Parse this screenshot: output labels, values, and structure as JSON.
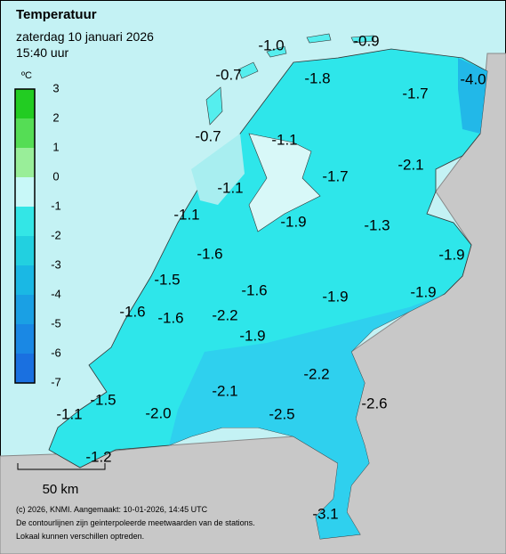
{
  "header": {
    "title": "Temperatuur",
    "date": "zaterdag 10 januari 2026",
    "time": "15:40 uur"
  },
  "legend": {
    "unit": "ºC",
    "ticks": [
      "3",
      "2",
      "1",
      "0",
      "-1",
      "-2",
      "-3",
      "-4",
      "-5",
      "-6",
      "-7"
    ]
  },
  "stations": [
    "-1.0",
    "-0.9",
    "-0.7",
    "-1.8",
    "-1.7",
    "-4.0",
    "-0.7",
    "-1.1",
    "-2.1",
    "-1.7",
    "-1.1",
    "-1.1",
    "-1.9",
    "-1.3",
    "-1.9",
    "-1.6",
    "-1.5",
    "-1.6",
    "-1.9",
    "-1.9",
    "-1.6",
    "-1.6",
    "-2.2",
    "-1.9",
    "-2.2",
    "-2.1",
    "-1.5",
    "-2.6",
    "-1.1",
    "-2.0",
    "-2.5",
    "-1.2",
    "-3.1"
  ],
  "scale_bar": "50 km",
  "footer": [
    "(c) 2026, KNMI. Aangemaakt: 10-01-2026, 14:45 UTC",
    "De contourlijnen zijn geinterpoleerde meetwaarden van de stations.",
    "Lokaal kunnen verschillen optreden."
  ]
}
